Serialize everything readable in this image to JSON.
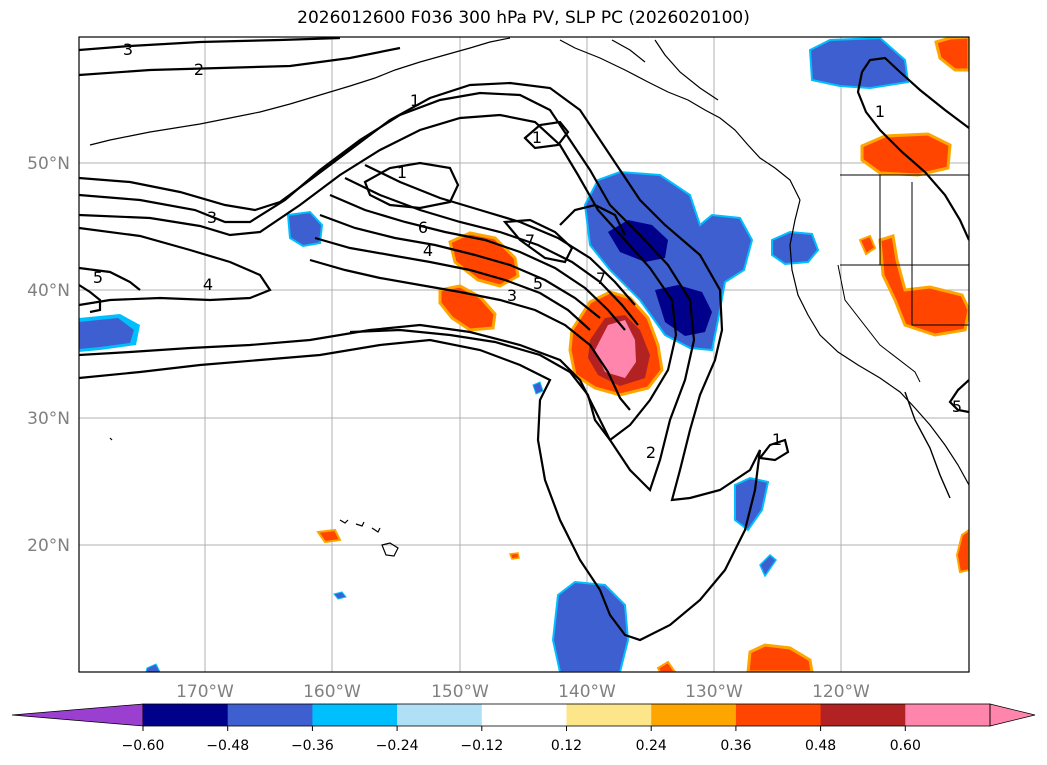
{
  "title": "2026012600 F036 300 hPa PV, SLP PC (2026020100)",
  "lat_labels": [
    "50°N",
    "40°N",
    "30°N",
    "20°N"
  ],
  "lon_labels": [
    "170°W",
    "160°W",
    "150°W",
    "140°W",
    "130°W",
    "120°W"
  ],
  "contour_labels": [
    "3",
    "2",
    "1",
    "1",
    "3",
    "4",
    "6",
    "4",
    "5",
    "7",
    "5",
    "3",
    "7",
    "2",
    "1",
    "1",
    "1",
    "5"
  ],
  "colorbar": {
    "ticks": [
      "−0.60",
      "−0.48",
      "−0.36",
      "−0.24",
      "−0.12",
      "0.12",
      "0.24",
      "0.36",
      "0.48",
      "0.60"
    ],
    "colors": [
      "#9b3fd0",
      "#00008b",
      "#3e5fcf",
      "#00bfff",
      "#b0e0f5",
      "#ffffff",
      "#fde68a",
      "#ffa500",
      "#ff4500",
      "#b22222",
      "#ff85ad",
      "#ff85ad"
    ]
  }
}
